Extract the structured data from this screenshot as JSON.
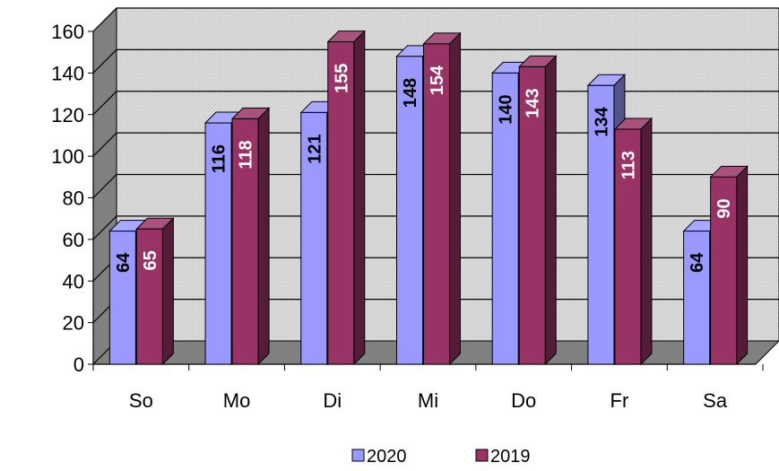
{
  "chart_data": {
    "type": "bar",
    "categories": [
      "So",
      "Mo",
      "Di",
      "Mi",
      "Do",
      "Fr",
      "Sa"
    ],
    "series": [
      {
        "name": "2020",
        "values": [
          64,
          116,
          121,
          148,
          140,
          134,
          64
        ],
        "color": "#9999ff",
        "label_color": "#000000"
      },
      {
        "name": "2019",
        "values": [
          65,
          118,
          155,
          154,
          143,
          113,
          90
        ],
        "color": "#993366",
        "label_color": "#ffffff"
      }
    ],
    "title": "",
    "xlabel": "",
    "ylabel": "",
    "ylim": [
      0,
      160
    ],
    "yticks": [
      0,
      20,
      40,
      60,
      80,
      100,
      120,
      140,
      160
    ],
    "grid": true,
    "three_d": true,
    "legend_position": "bottom",
    "colors": {
      "plot_background": "#c0c0c0",
      "side_wall": "#808080",
      "floor": "#808080"
    }
  }
}
